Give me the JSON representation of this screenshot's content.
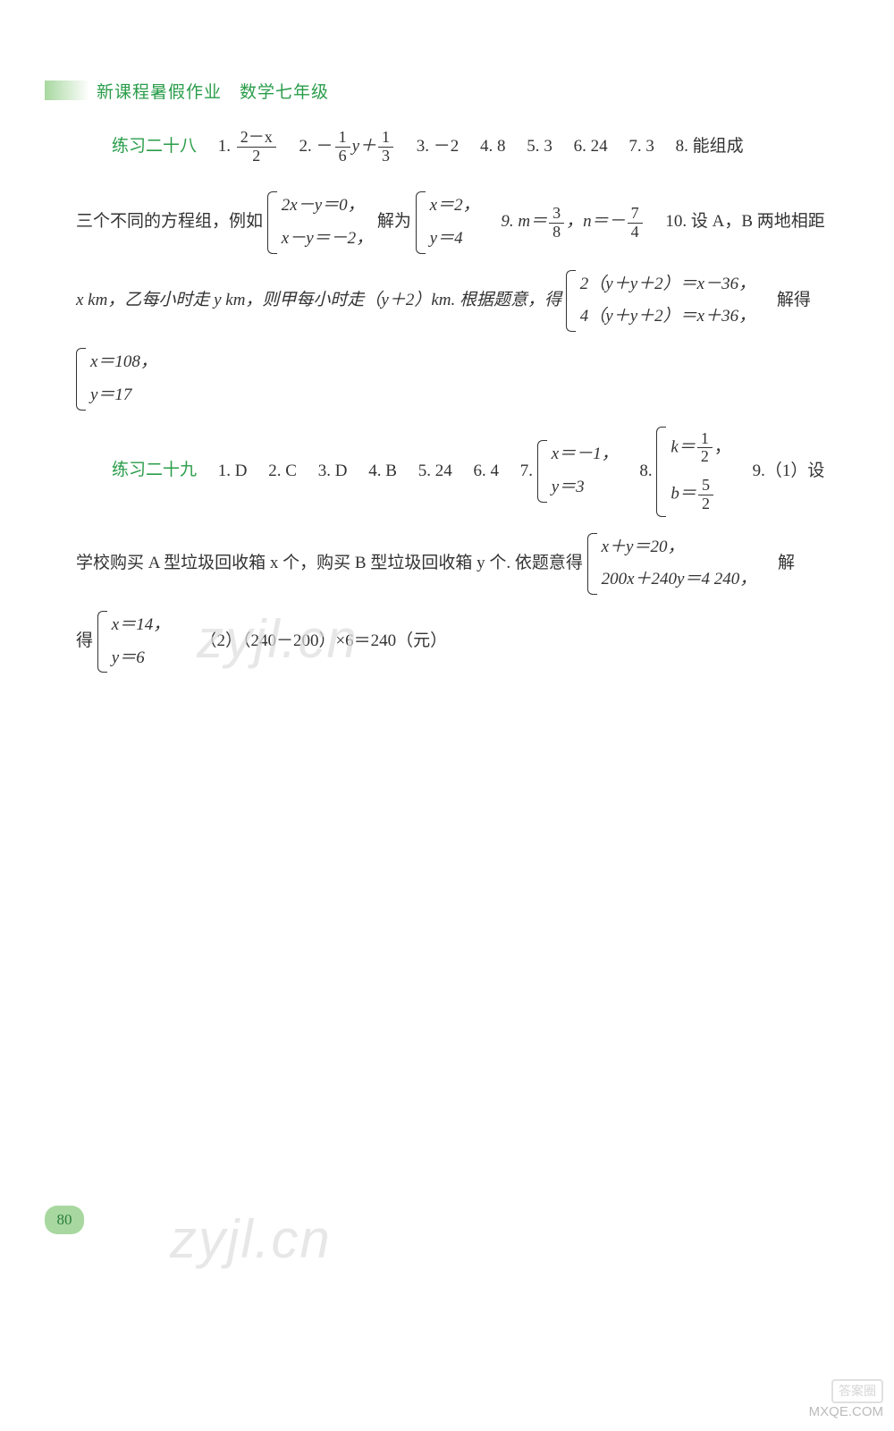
{
  "header": {
    "title": "新课程暑假作业　数学七年级"
  },
  "section28": {
    "label": "练习二十八",
    "a1_num": "2－x",
    "a1_den": "2",
    "a2_prefix": "－",
    "a2_frac1_num": "1",
    "a2_frac1_den": "6",
    "a2_mid": "y＋",
    "a2_frac2_num": "1",
    "a2_frac2_den": "3",
    "a3": "－2",
    "a4": "8",
    "a5": "3",
    "a6": "24",
    "a7": "3",
    "a8_text": "能组成",
    "line2_prefix": "三个不同的方程组，例如",
    "sys1_l1": "2x－y＝0，",
    "sys1_l2": "x－y＝－2，",
    "line2_mid1": "解为",
    "sys2_l1": "x＝2，",
    "sys2_l2": "y＝4",
    "a9_prefix": "9. m＝",
    "a9_frac1_num": "3",
    "a9_frac1_den": "8",
    "a9_mid": "，n＝－",
    "a9_frac2_num": "7",
    "a9_frac2_den": "4",
    "a10_text": "10. 设 A，B 两地相距",
    "line3_prefix": "x km，乙每小时走 y km，则甲每小时走（y＋2）km. 根据题意，得",
    "sys3_l1": "2（y＋y＋2）＝x－36，",
    "sys3_l2": "4（y＋y＋2）＝x＋36，",
    "line3_suffix": "解得",
    "sys4_l1": "x＝108，",
    "sys4_l2": "y＝17"
  },
  "section29": {
    "label": "练习二十九",
    "a1": "1. D",
    "a2": "2. C",
    "a3": "3. D",
    "a4": "4. B",
    "a5": "5. 24",
    "a6": "6. 4",
    "a7_prefix": "7.",
    "sys5_l1": "x＝－1，",
    "sys5_l2": "y＝3",
    "a8_prefix": "8.",
    "sys6_l1_prefix": "k＝",
    "sys6_l1_num": "1",
    "sys6_l1_den": "2",
    "sys6_l1_suffix": "，",
    "sys6_l2_prefix": "b＝",
    "sys6_l2_num": "5",
    "sys6_l2_den": "2",
    "a9_text": "9.（1）设",
    "line2_prefix": "学校购买 A 型垃圾回收箱 x 个，购买 B 型垃圾回收箱 y 个. 依题意得",
    "sys7_l1": "x＋y＝20，",
    "sys7_l2": "200x＋240y＝4 240，",
    "line2_suffix": "解",
    "line3_prefix": "得",
    "sys8_l1": "x＝14，",
    "sys8_l2": "y＝6",
    "part2": "（2）（240－200）×6＝240（元）"
  },
  "page_number": "80",
  "watermark_text": "zyjl.cn",
  "corner": {
    "line1": "答案圈",
    "line2": "MXQE.COM"
  },
  "colors": {
    "brand_green": "#2a9d4a",
    "text": "#333333",
    "badge_bg": "#a8d8a0",
    "watermark": "#dddddd"
  }
}
